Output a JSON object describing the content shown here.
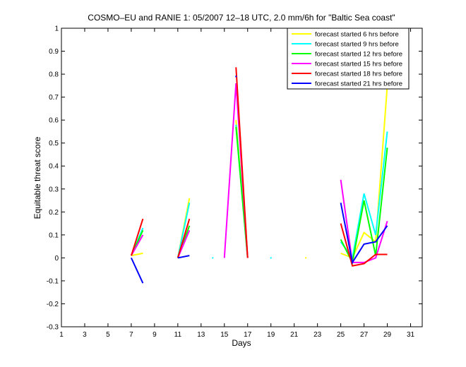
{
  "chart_data": {
    "type": "line",
    "title": "COSMO–EU and RANIE 1: 05/2007 12–18 UTC, 2.0 mm/6h for \"Baltic Sea coast\"",
    "xlabel": "Days",
    "ylabel": "Equitable threat score",
    "xlim": [
      1,
      32
    ],
    "ylim": [
      -0.3,
      1
    ],
    "xticks": [
      1,
      3,
      5,
      7,
      9,
      11,
      13,
      15,
      17,
      19,
      21,
      23,
      25,
      27,
      29,
      31
    ],
    "yticks": [
      -0.3,
      -0.2,
      -0.1,
      0,
      0.1,
      0.2,
      0.3,
      0.4,
      0.5,
      0.6,
      0.7,
      0.8,
      0.9,
      1
    ],
    "grid": false,
    "legend_position": "top-right",
    "x": [
      7,
      8,
      9,
      10,
      11,
      12,
      13,
      14,
      15,
      16,
      17,
      18,
      19,
      20,
      21,
      22,
      23,
      24,
      25,
      26,
      27,
      28,
      29
    ],
    "series": [
      {
        "name": "forecast started 6 hrs before",
        "color": "#ffff00",
        "values": [
          0.01,
          0.02,
          null,
          null,
          0.0,
          0.26,
          null,
          null,
          null,
          0.6,
          0.0,
          null,
          null,
          null,
          null,
          0.0,
          null,
          null,
          0.02,
          0.0,
          0.11,
          0.07,
          0.75
        ]
      },
      {
        "name": "forecast started 9 hrs before",
        "color": "#00ffff",
        "values": [
          0.01,
          0.13,
          null,
          null,
          0.0,
          0.24,
          null,
          0.0,
          null,
          0.58,
          0.0,
          null,
          0.0,
          null,
          null,
          null,
          null,
          null,
          0.07,
          0.0,
          0.28,
          0.1,
          0.55
        ]
      },
      {
        "name": "forecast started 12 hrs before",
        "color": "#00ff00",
        "values": [
          0.01,
          0.12,
          null,
          null,
          0.0,
          0.14,
          null,
          null,
          null,
          0.57,
          0.0,
          null,
          null,
          null,
          null,
          null,
          null,
          null,
          0.08,
          -0.02,
          0.25,
          0.01,
          0.48
        ]
      },
      {
        "name": "forecast started 15 hrs before",
        "color": "#ff00ff",
        "values": [
          0.01,
          0.1,
          null,
          null,
          0.0,
          0.12,
          null,
          null,
          0.0,
          0.76,
          0.0,
          null,
          null,
          null,
          null,
          null,
          null,
          null,
          0.34,
          -0.02,
          -0.02,
          0.0,
          0.16
        ]
      },
      {
        "name": "forecast started 18 hrs before",
        "color": "#ff0000",
        "values": [
          0.01,
          0.17,
          null,
          null,
          0.0,
          0.17,
          null,
          null,
          null,
          0.83,
          0.0,
          null,
          null,
          null,
          null,
          null,
          null,
          null,
          0.15,
          -0.035,
          -0.025,
          0.015,
          0.015
        ]
      },
      {
        "name": "forecast started 21 hrs before",
        "color": "#0000ff",
        "values": [
          0.0,
          -0.11,
          null,
          null,
          0.0,
          0.01,
          null,
          null,
          null,
          0.79,
          null,
          null,
          null,
          null,
          null,
          null,
          null,
          null,
          0.24,
          -0.02,
          0.06,
          0.07,
          0.14
        ]
      }
    ]
  }
}
